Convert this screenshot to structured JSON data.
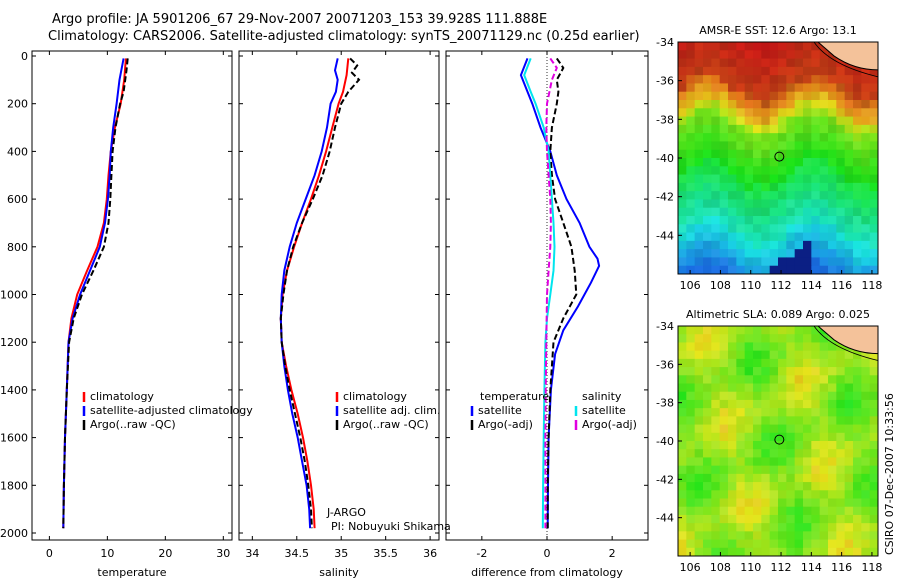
{
  "titles": {
    "line1": "Argo profile: JA 5901206_67 29-Nov-2007 20071203_153 39.928S 111.888E",
    "line2": "Climatology: CARS2006. Satellite-adjusted climatology: synTS_20071129.nc (0.25d earlier)"
  },
  "credit": {
    "project": "J-ARGO",
    "pi": "PI: Nobuyuki Shikama"
  },
  "side_stamp": "CSIRO 07-Dec-2007 10:33:56",
  "colors": {
    "climatology": "#ff0000",
    "satellite": "#0000ff",
    "argo": "#000000",
    "sat_salinity": "#00e5ee",
    "argo_salinity": "#e000e0"
  },
  "chart_data": [
    {
      "type": "line",
      "xlabel": "temperature",
      "ylabel": "",
      "xlim": [
        -3,
        31.5
      ],
      "ylim": [
        2000,
        0
      ],
      "xticks": [
        0,
        10,
        20,
        30
      ],
      "yticks": [
        0,
        200,
        400,
        600,
        800,
        1000,
        1200,
        1400,
        1600,
        1800,
        2000
      ],
      "legend": [
        "climatology",
        "satellite-adjusted climatology",
        "Argo(..raw -QC)"
      ],
      "series": [
        {
          "name": "climatology",
          "color": "#ff0000",
          "dash": "",
          "points": [
            [
              13.2,
              10
            ],
            [
              12.9,
              100
            ],
            [
              12.3,
              200
            ],
            [
              11.3,
              300
            ],
            [
              10.6,
              400
            ],
            [
              10.2,
              500
            ],
            [
              9.9,
              600
            ],
            [
              9.4,
              700
            ],
            [
              8.3,
              800
            ],
            [
              6.5,
              900
            ],
            [
              4.8,
              1000
            ],
            [
              3.8,
              1100
            ],
            [
              3.3,
              1200
            ],
            [
              3.0,
              1400
            ],
            [
              2.7,
              1600
            ],
            [
              2.5,
              1800
            ],
            [
              2.4,
              1980
            ]
          ]
        },
        {
          "name": "satellite-adjusted climatology",
          "color": "#0000ff",
          "dash": "",
          "points": [
            [
              12.8,
              10
            ],
            [
              12.1,
              100
            ],
            [
              11.6,
              200
            ],
            [
              11.0,
              300
            ],
            [
              10.6,
              400
            ],
            [
              10.4,
              500
            ],
            [
              10.1,
              600
            ],
            [
              9.6,
              700
            ],
            [
              8.7,
              800
            ],
            [
              7.0,
              900
            ],
            [
              5.3,
              1000
            ],
            [
              4.0,
              1100
            ],
            [
              3.3,
              1200
            ],
            [
              3.0,
              1400
            ],
            [
              2.7,
              1600
            ],
            [
              2.5,
              1800
            ],
            [
              2.4,
              1980
            ]
          ]
        },
        {
          "name": "Argo(..raw -QC)",
          "color": "#000000",
          "dash": "6,3",
          "points": [
            [
              13.5,
              10
            ],
            [
              13.3,
              60
            ],
            [
              12.8,
              150
            ],
            [
              12.2,
              200
            ],
            [
              11.4,
              300
            ],
            [
              10.9,
              400
            ],
            [
              10.7,
              500
            ],
            [
              10.5,
              600
            ],
            [
              10.2,
              700
            ],
            [
              9.4,
              800
            ],
            [
              7.6,
              900
            ],
            [
              5.6,
              1000
            ],
            [
              4.2,
              1100
            ],
            [
              3.4,
              1200
            ],
            [
              3.0,
              1400
            ],
            [
              2.7,
              1600
            ],
            [
              2.5,
              1800
            ],
            [
              2.4,
              1980
            ]
          ]
        }
      ]
    },
    {
      "type": "line",
      "xlabel": "salinity",
      "ylabel": "",
      "xlim": [
        33.85,
        36.1
      ],
      "ylim": [
        2000,
        0
      ],
      "xticks": [
        34,
        34.5,
        35,
        35.5,
        36
      ],
      "yticks": [
        0,
        200,
        400,
        600,
        800,
        1000,
        1200,
        1400,
        1600,
        1800,
        2000
      ],
      "legend": [
        "climatology",
        "satellite adj. clim.",
        "Argo(..raw -QC)"
      ],
      "series": [
        {
          "name": "climatology",
          "color": "#ff0000",
          "dash": "",
          "points": [
            [
              35.08,
              10
            ],
            [
              35.06,
              80
            ],
            [
              35.02,
              150
            ],
            [
              34.97,
              200
            ],
            [
              34.9,
              300
            ],
            [
              34.83,
              400
            ],
            [
              34.75,
              500
            ],
            [
              34.66,
              600
            ],
            [
              34.56,
              700
            ],
            [
              34.47,
              800
            ],
            [
              34.39,
              900
            ],
            [
              34.34,
              1000
            ],
            [
              34.32,
              1100
            ],
            [
              34.33,
              1200
            ],
            [
              34.38,
              1300
            ],
            [
              34.44,
              1400
            ],
            [
              34.51,
              1500
            ],
            [
              34.57,
              1600
            ],
            [
              34.62,
              1700
            ],
            [
              34.66,
              1800
            ],
            [
              34.69,
              1900
            ],
            [
              34.7,
              1980
            ]
          ]
        },
        {
          "name": "satellite adj. clim.",
          "color": "#0000ff",
          "dash": "",
          "points": [
            [
              34.96,
              10
            ],
            [
              34.93,
              60
            ],
            [
              34.96,
              100
            ],
            [
              34.94,
              150
            ],
            [
              34.88,
              200
            ],
            [
              34.84,
              300
            ],
            [
              34.78,
              400
            ],
            [
              34.7,
              500
            ],
            [
              34.6,
              600
            ],
            [
              34.5,
              700
            ],
            [
              34.42,
              800
            ],
            [
              34.36,
              900
            ],
            [
              34.33,
              1000
            ],
            [
              34.32,
              1100
            ],
            [
              34.33,
              1200
            ],
            [
              34.36,
              1300
            ],
            [
              34.4,
              1400
            ],
            [
              34.45,
              1500
            ],
            [
              34.51,
              1600
            ],
            [
              34.56,
              1700
            ],
            [
              34.61,
              1800
            ],
            [
              34.64,
              1900
            ],
            [
              34.65,
              1980
            ]
          ]
        },
        {
          "name": "Argo(..raw -QC)",
          "color": "#000000",
          "dash": "6,3",
          "points": [
            [
              35.1,
              10
            ],
            [
              35.18,
              40
            ],
            [
              35.12,
              70
            ],
            [
              35.2,
              100
            ],
            [
              35.08,
              150
            ],
            [
              35.0,
              200
            ],
            [
              34.93,
              300
            ],
            [
              34.87,
              400
            ],
            [
              34.79,
              500
            ],
            [
              34.68,
              600
            ],
            [
              34.56,
              700
            ],
            [
              34.46,
              800
            ],
            [
              34.39,
              900
            ],
            [
              34.35,
              1000
            ],
            [
              34.32,
              1100
            ],
            [
              34.33,
              1200
            ],
            [
              34.37,
              1300
            ],
            [
              34.42,
              1400
            ],
            [
              34.48,
              1500
            ],
            [
              34.54,
              1600
            ],
            [
              34.59,
              1700
            ],
            [
              34.63,
              1800
            ],
            [
              34.66,
              1900
            ],
            [
              34.67,
              1980
            ]
          ]
        }
      ]
    },
    {
      "type": "line",
      "xlabel": "difference from climatology",
      "ylabel": "",
      "xlim": [
        -3.1,
        3.1
      ],
      "ylim": [
        2000,
        0
      ],
      "xticks": [
        -2,
        0,
        2
      ],
      "yticks": [
        0,
        200,
        400,
        600,
        800,
        1000,
        1200,
        1400,
        1600,
        1800,
        2000
      ],
      "legend": [
        "temperature",
        "satellite",
        "Argo(-adj)",
        "salinity",
        "satellite",
        "Argo(-adj)"
      ],
      "series": [
        {
          "name": "satellite",
          "color": "#0000ff",
          "dash": "",
          "points": [
            [
              -0.6,
              10
            ],
            [
              -0.8,
              80
            ],
            [
              -0.6,
              150
            ],
            [
              -0.45,
              200
            ],
            [
              -0.2,
              300
            ],
            [
              0.1,
              400
            ],
            [
              0.3,
              500
            ],
            [
              0.6,
              600
            ],
            [
              1.0,
              700
            ],
            [
              1.3,
              800
            ],
            [
              1.55,
              850
            ],
            [
              1.6,
              880
            ],
            [
              1.35,
              950
            ],
            [
              0.95,
              1050
            ],
            [
              0.5,
              1150
            ],
            [
              0.25,
              1250
            ],
            [
              0.12,
              1400
            ],
            [
              0.05,
              1600
            ],
            [
              0.03,
              1800
            ],
            [
              0.02,
              1980
            ]
          ]
        },
        {
          "name": "Argo(-adj)",
          "color": "#000000",
          "dash": "6,3",
          "points": [
            [
              0.3,
              10
            ],
            [
              0.5,
              50
            ],
            [
              0.3,
              100
            ],
            [
              0.35,
              150
            ],
            [
              0.3,
              200
            ],
            [
              0.15,
              300
            ],
            [
              0.1,
              400
            ],
            [
              0.15,
              500
            ],
            [
              0.25,
              600
            ],
            [
              0.5,
              700
            ],
            [
              0.75,
              800
            ],
            [
              0.85,
              900
            ],
            [
              0.9,
              1000
            ],
            [
              0.5,
              1100
            ],
            [
              0.2,
              1200
            ],
            [
              0.1,
              1400
            ],
            [
              0.05,
              1600
            ],
            [
              0.02,
              1800
            ],
            [
              0.02,
              1980
            ]
          ]
        },
        {
          "name": "satellite",
          "color": "#00e5ee",
          "dash": "",
          "points": [
            [
              -0.5,
              10
            ],
            [
              -0.7,
              80
            ],
            [
              -0.5,
              150
            ],
            [
              -0.35,
              200
            ],
            [
              -0.1,
              300
            ],
            [
              0.05,
              400
            ],
            [
              0.1,
              500
            ],
            [
              0.15,
              600
            ],
            [
              0.2,
              700
            ],
            [
              0.23,
              800
            ],
            [
              0.2,
              900
            ],
            [
              0.1,
              1000
            ],
            [
              0.0,
              1100
            ],
            [
              -0.05,
              1200
            ],
            [
              -0.08,
              1400
            ],
            [
              -0.1,
              1600
            ],
            [
              -0.12,
              1800
            ],
            [
              -0.13,
              1980
            ]
          ]
        },
        {
          "name": "Argo(-adj)",
          "color": "#e000e0",
          "dash": "6,3",
          "points": [
            [
              0.1,
              10
            ],
            [
              0.3,
              50
            ],
            [
              0.15,
              100
            ],
            [
              0.0,
              200
            ],
            [
              -0.02,
              300
            ],
            [
              0.0,
              400
            ],
            [
              0.05,
              500
            ],
            [
              0.1,
              600
            ],
            [
              0.12,
              700
            ],
            [
              0.1,
              800
            ],
            [
              0.05,
              900
            ],
            [
              0.0,
              1000
            ],
            [
              -0.02,
              1200
            ],
            [
              -0.04,
              1400
            ],
            [
              -0.05,
              1600
            ],
            [
              -0.05,
              1800
            ],
            [
              -0.05,
              1980
            ]
          ]
        }
      ]
    },
    {
      "type": "heatmap",
      "title": "AMSR-E SST: 12.6 Argo: 13.1",
      "xlim": [
        105.2,
        118.4
      ],
      "ylim": [
        -46,
        -34
      ],
      "xticks": [
        106,
        108,
        110,
        112,
        114,
        116,
        118
      ],
      "yticks": [
        -34,
        -36,
        -38,
        -40,
        -42,
        -44
      ],
      "marker": {
        "lon": 111.888,
        "lat": -39.928
      }
    },
    {
      "type": "heatmap",
      "title": "Altimetric SLA: 0.089 Argo: 0.025",
      "xlim": [
        105.2,
        118.4
      ],
      "ylim": [
        -46,
        -34
      ],
      "xticks": [
        106,
        108,
        110,
        112,
        114,
        116,
        118
      ],
      "yticks": [
        -34,
        -36,
        -38,
        -40,
        -42,
        -44
      ],
      "marker": {
        "lon": 111.888,
        "lat": -39.928
      }
    }
  ]
}
